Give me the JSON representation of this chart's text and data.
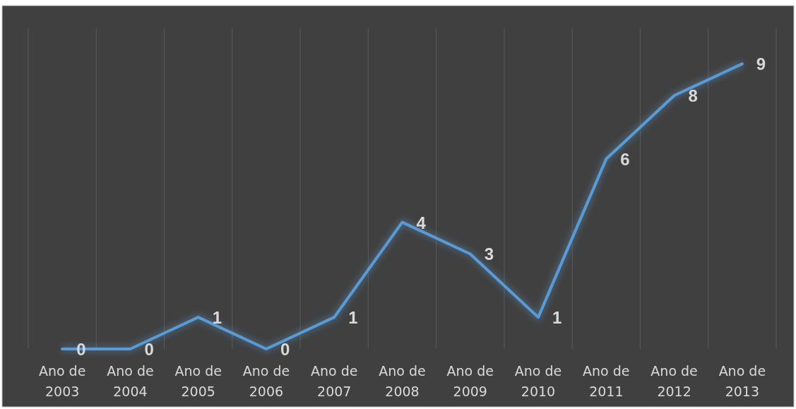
{
  "chart_data": {
    "type": "line",
    "categories": [
      "Ano de 2003",
      "Ano de 2004",
      "Ano de 2005",
      "Ano de 2006",
      "Ano de 2007",
      "Ano de 2008",
      "Ano de 2009",
      "Ano de 2010",
      "Ano de 2011",
      "Ano de 2012",
      "Ano de 2013"
    ],
    "series": [
      {
        "color": "#5b9bd5",
        "values": [
          0,
          0,
          1,
          0,
          1,
          4,
          3,
          1,
          6,
          8,
          9
        ]
      }
    ],
    "data_labels": true,
    "grid": "x",
    "marker": "none",
    "line_style": "solid"
  }
}
